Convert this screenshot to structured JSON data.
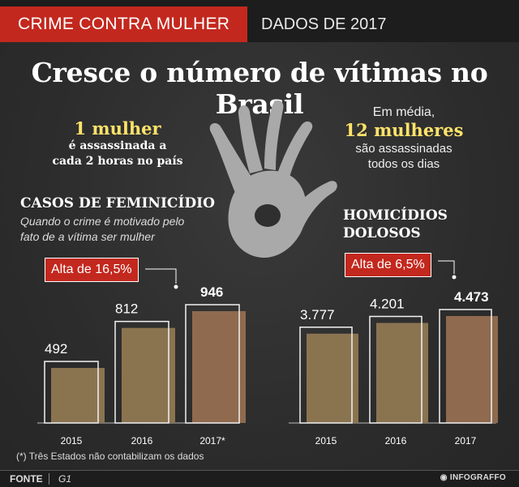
{
  "header": {
    "tag": "CRIME CONTRA MULHER",
    "date": "DADOS DE 2017"
  },
  "headline": "Cresce o número de vítimas no Brasil",
  "stat_left": {
    "big": "1 mulher",
    "line1": "é assassinada a",
    "line2": "cada 2 horas no país"
  },
  "stat_right": {
    "pre": "Em média,",
    "big": "12 mulheres",
    "line1": "são assassinadas",
    "line2": "todos os dias"
  },
  "left_section": {
    "title": "CASOS DE FEMINICÍDIO",
    "subtitle_line1": "Quando o crime é motivado pelo",
    "subtitle_line2": "fato de a vítima ser mulher",
    "alta": "Alta de 16,5%"
  },
  "right_section": {
    "title_line1": "HOMICÍDIOS",
    "title_line2": "DOLOSOS",
    "alta": "Alta de 6,5%"
  },
  "colors": {
    "accent_red": "#c3281e",
    "highlight_yellow": "#ffe36a",
    "bar_fill": "#8a7450",
    "bar_fill_last": "#8f6a4e",
    "background": "#2f2f2f"
  },
  "icons": [
    "hand-icon"
  ],
  "chart_data": [
    {
      "type": "bar",
      "title": "CASOS DE FEMINICÍDIO",
      "categories": [
        "2015",
        "2016",
        "2017*"
      ],
      "values": [
        492,
        812,
        946
      ],
      "value_labels": [
        "492",
        "812",
        "946"
      ]
    },
    {
      "type": "bar",
      "title": "HOMICÍDIOS DOLOSOS",
      "categories": [
        "2015",
        "2016",
        "2017"
      ],
      "values": [
        3777,
        4201,
        4473
      ],
      "value_labels": [
        "3.777",
        "4.201",
        "4.473"
      ]
    }
  ],
  "note": "(*) Três Estados não contabilizam os dados",
  "footer": {
    "source_label": "FONTE",
    "source": "G1",
    "credit": "INFOGRAFFO"
  }
}
